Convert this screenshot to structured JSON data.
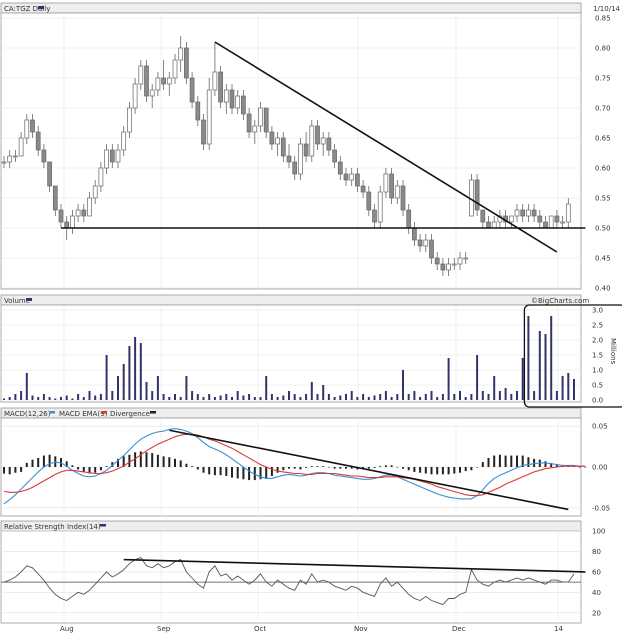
{
  "chart_data": [
    {
      "type": "candlestick",
      "title": "CA:TGZ Daily",
      "date_label": "1/10/14",
      "y_ticks": [
        "0.85",
        "0.80",
        "0.75",
        "0.70",
        "0.65",
        "0.60",
        "0.55",
        "0.50",
        "0.45",
        "0.40"
      ],
      "ylim": [
        0.4,
        0.85
      ],
      "x_ticks": [
        "Aug",
        "Sep",
        "Oct",
        "Nov",
        "Dec",
        "14"
      ],
      "ohlc": [
        [
          0.61,
          0.62,
          0.6,
          0.61
        ],
        [
          0.61,
          0.63,
          0.6,
          0.62
        ],
        [
          0.62,
          0.63,
          0.61,
          0.62
        ],
        [
          0.62,
          0.66,
          0.62,
          0.65
        ],
        [
          0.65,
          0.69,
          0.64,
          0.68
        ],
        [
          0.68,
          0.69,
          0.65,
          0.66
        ],
        [
          0.66,
          0.67,
          0.62,
          0.63
        ],
        [
          0.63,
          0.64,
          0.6,
          0.61
        ],
        [
          0.61,
          0.61,
          0.56,
          0.57
        ],
        [
          0.57,
          0.57,
          0.52,
          0.53
        ],
        [
          0.53,
          0.54,
          0.5,
          0.51
        ],
        [
          0.51,
          0.52,
          0.48,
          0.5
        ],
        [
          0.5,
          0.53,
          0.49,
          0.52
        ],
        [
          0.52,
          0.54,
          0.51,
          0.53
        ],
        [
          0.53,
          0.54,
          0.51,
          0.52
        ],
        [
          0.52,
          0.56,
          0.52,
          0.55
        ],
        [
          0.55,
          0.58,
          0.54,
          0.57
        ],
        [
          0.57,
          0.61,
          0.56,
          0.6
        ],
        [
          0.6,
          0.64,
          0.59,
          0.63
        ],
        [
          0.63,
          0.64,
          0.6,
          0.61
        ],
        [
          0.61,
          0.64,
          0.6,
          0.63
        ],
        [
          0.63,
          0.67,
          0.62,
          0.66
        ],
        [
          0.66,
          0.71,
          0.65,
          0.7
        ],
        [
          0.7,
          0.75,
          0.69,
          0.74
        ],
        [
          0.74,
          0.78,
          0.73,
          0.77
        ],
        [
          0.77,
          0.78,
          0.71,
          0.72
        ],
        [
          0.72,
          0.74,
          0.7,
          0.73
        ],
        [
          0.73,
          0.76,
          0.72,
          0.75
        ],
        [
          0.75,
          0.78,
          0.73,
          0.74
        ],
        [
          0.74,
          0.76,
          0.72,
          0.75
        ],
        [
          0.75,
          0.79,
          0.74,
          0.78
        ],
        [
          0.78,
          0.82,
          0.76,
          0.8
        ],
        [
          0.8,
          0.81,
          0.74,
          0.75
        ],
        [
          0.75,
          0.76,
          0.7,
          0.71
        ],
        [
          0.71,
          0.72,
          0.67,
          0.68
        ],
        [
          0.68,
          0.69,
          0.63,
          0.64
        ],
        [
          0.64,
          0.75,
          0.63,
          0.73
        ],
        [
          0.73,
          0.81,
          0.72,
          0.76
        ],
        [
          0.76,
          0.77,
          0.7,
          0.71
        ],
        [
          0.71,
          0.74,
          0.69,
          0.73
        ],
        [
          0.73,
          0.74,
          0.69,
          0.7
        ],
        [
          0.7,
          0.73,
          0.69,
          0.72
        ],
        [
          0.72,
          0.73,
          0.68,
          0.69
        ],
        [
          0.69,
          0.7,
          0.65,
          0.66
        ],
        [
          0.66,
          0.68,
          0.64,
          0.67
        ],
        [
          0.67,
          0.71,
          0.66,
          0.7
        ],
        [
          0.7,
          0.7,
          0.65,
          0.66
        ],
        [
          0.66,
          0.67,
          0.63,
          0.64
        ],
        [
          0.64,
          0.66,
          0.62,
          0.65
        ],
        [
          0.65,
          0.66,
          0.61,
          0.62
        ],
        [
          0.62,
          0.64,
          0.6,
          0.61
        ],
        [
          0.61,
          0.62,
          0.58,
          0.59
        ],
        [
          0.59,
          0.65,
          0.58,
          0.64
        ],
        [
          0.64,
          0.66,
          0.61,
          0.62
        ],
        [
          0.62,
          0.68,
          0.61,
          0.67
        ],
        [
          0.67,
          0.68,
          0.63,
          0.64
        ],
        [
          0.64,
          0.66,
          0.62,
          0.65
        ],
        [
          0.65,
          0.66,
          0.62,
          0.63
        ],
        [
          0.63,
          0.64,
          0.6,
          0.61
        ],
        [
          0.61,
          0.62,
          0.58,
          0.59
        ],
        [
          0.59,
          0.6,
          0.57,
          0.58
        ],
        [
          0.58,
          0.6,
          0.57,
          0.59
        ],
        [
          0.59,
          0.6,
          0.56,
          0.57
        ],
        [
          0.57,
          0.58,
          0.55,
          0.56
        ],
        [
          0.56,
          0.57,
          0.52,
          0.53
        ],
        [
          0.53,
          0.54,
          0.5,
          0.51
        ],
        [
          0.51,
          0.57,
          0.5,
          0.56
        ],
        [
          0.56,
          0.6,
          0.55,
          0.59
        ],
        [
          0.59,
          0.6,
          0.54,
          0.55
        ],
        [
          0.55,
          0.58,
          0.54,
          0.57
        ],
        [
          0.57,
          0.58,
          0.52,
          0.53
        ],
        [
          0.53,
          0.54,
          0.49,
          0.5
        ],
        [
          0.5,
          0.51,
          0.47,
          0.48
        ],
        [
          0.48,
          0.49,
          0.46,
          0.47
        ],
        [
          0.47,
          0.49,
          0.46,
          0.48
        ],
        [
          0.48,
          0.49,
          0.44,
          0.45
        ],
        [
          0.45,
          0.46,
          0.43,
          0.44
        ],
        [
          0.44,
          0.45,
          0.42,
          0.43
        ],
        [
          0.43,
          0.45,
          0.42,
          0.44
        ],
        [
          0.44,
          0.45,
          0.43,
          0.44
        ],
        [
          0.44,
          0.46,
          0.43,
          0.45
        ],
        [
          0.45,
          0.46,
          0.44,
          0.45
        ],
        [
          0.52,
          0.59,
          0.52,
          0.58
        ],
        [
          0.58,
          0.59,
          0.52,
          0.53
        ],
        [
          0.53,
          0.53,
          0.5,
          0.51
        ],
        [
          0.51,
          0.52,
          0.5,
          0.5
        ],
        [
          0.5,
          0.52,
          0.5,
          0.51
        ],
        [
          0.51,
          0.53,
          0.5,
          0.52
        ],
        [
          0.52,
          0.53,
          0.5,
          0.51
        ],
        [
          0.51,
          0.52,
          0.5,
          0.52
        ],
        [
          0.52,
          0.54,
          0.51,
          0.53
        ],
        [
          0.53,
          0.54,
          0.51,
          0.52
        ],
        [
          0.52,
          0.54,
          0.51,
          0.53
        ],
        [
          0.53,
          0.54,
          0.51,
          0.52
        ],
        [
          0.52,
          0.53,
          0.5,
          0.51
        ],
        [
          0.51,
          0.52,
          0.5,
          0.5
        ],
        [
          0.5,
          0.52,
          0.5,
          0.52
        ],
        [
          0.52,
          0.53,
          0.5,
          0.51
        ],
        [
          0.51,
          0.52,
          0.5,
          0.51
        ],
        [
          0.51,
          0.55,
          0.5,
          0.54
        ]
      ],
      "trend_lines": [
        {
          "from": {
            "bar": 37,
            "value": 0.81
          },
          "to": {
            "bar": 97,
            "value": 0.46
          }
        },
        {
          "from": {
            "bar": 10,
            "value": 0.5
          },
          "to": {
            "bar": 102,
            "value": 0.5
          }
        }
      ]
    },
    {
      "type": "bar",
      "title": "Volume",
      "watermark": "©BigCharts.com",
      "unit_label": "Millions",
      "y_ticks": [
        "3.0",
        "2.5",
        "2.0",
        "1.5",
        "1.0",
        "0.5",
        "0.0"
      ],
      "ylim": [
        0,
        3.0
      ],
      "values": [
        0.05,
        0.1,
        0.2,
        0.3,
        0.9,
        0.15,
        0.1,
        0.2,
        0.1,
        0.05,
        0.1,
        0.15,
        0.05,
        0.2,
        0.1,
        0.3,
        0.15,
        0.2,
        1.5,
        0.3,
        0.8,
        1.2,
        1.8,
        2.1,
        1.9,
        0.6,
        0.3,
        0.8,
        0.2,
        0.1,
        0.2,
        0.1,
        0.8,
        0.3,
        0.2,
        0.1,
        0.2,
        0.1,
        0.15,
        0.2,
        0.1,
        0.3,
        0.15,
        0.2,
        0.1,
        0.1,
        0.8,
        0.2,
        0.1,
        0.15,
        0.3,
        0.2,
        0.1,
        0.2,
        0.6,
        0.2,
        0.5,
        0.2,
        0.1,
        0.15,
        0.2,
        0.3,
        0.1,
        0.2,
        0.1,
        0.15,
        0.2,
        0.3,
        0.1,
        0.2,
        1.0,
        0.2,
        0.3,
        0.1,
        0.2,
        0.3,
        0.1,
        0.2,
        1.4,
        0.2,
        0.3,
        0.1,
        0.2,
        1.5,
        0.3,
        0.2,
        0.8,
        0.3,
        0.4,
        0.2,
        0.3,
        1.4,
        2.8,
        0.3,
        2.3,
        2.2,
        2.8,
        0.3,
        0.8,
        0.9,
        0.7
      ],
      "highlight_box": {
        "from_bar": 92,
        "to_bar": 102
      }
    },
    {
      "type": "line+bar",
      "title": "MACD(12,26)",
      "legend": [
        {
          "label": "MACD EMA(9)",
          "color": "#3a8fd6"
        },
        {
          "label": "Divergence",
          "color": "#d83a3a"
        }
      ],
      "y_ticks": [
        "0.05",
        "0.00",
        "-0.05"
      ],
      "ylim": [
        -0.06,
        0.06
      ],
      "series": [
        {
          "name": "MACD(12,26)",
          "color": "#3a8fd6",
          "values": [
            -0.045,
            -0.04,
            -0.034,
            -0.027,
            -0.02,
            -0.013,
            -0.006,
            0.0,
            0.004,
            0.006,
            0.005,
            0.001,
            -0.004,
            -0.008,
            -0.011,
            -0.012,
            -0.011,
            -0.008,
            -0.004,
            0.002,
            0.008,
            0.014,
            0.021,
            0.028,
            0.034,
            0.038,
            0.041,
            0.043,
            0.044,
            0.046,
            0.047,
            0.046,
            0.044,
            0.041,
            0.036,
            0.03,
            0.025,
            0.022,
            0.019,
            0.015,
            0.01,
            0.005,
            0.0,
            -0.005,
            -0.009,
            -0.012,
            -0.014,
            -0.014,
            -0.012,
            -0.01,
            -0.009,
            -0.01,
            -0.011,
            -0.01,
            -0.008,
            -0.007,
            -0.007,
            -0.008,
            -0.01,
            -0.011,
            -0.012,
            -0.013,
            -0.014,
            -0.015,
            -0.015,
            -0.014,
            -0.012,
            -0.01,
            -0.01,
            -0.012,
            -0.015,
            -0.018,
            -0.021,
            -0.024,
            -0.027,
            -0.03,
            -0.033,
            -0.035,
            -0.037,
            -0.038,
            -0.039,
            -0.039,
            -0.039,
            -0.035,
            -0.028,
            -0.02,
            -0.014,
            -0.01,
            -0.007,
            -0.004,
            -0.001,
            0.002,
            0.003,
            0.004,
            0.005,
            0.005,
            0.004,
            0.003,
            0.002,
            0.002,
            0.002,
            0.001,
            0.001
          ]
        },
        {
          "name": "MACD EMA(9)",
          "color": "#d83a3a",
          "values": [
            -0.03,
            -0.031,
            -0.031,
            -0.03,
            -0.028,
            -0.025,
            -0.021,
            -0.017,
            -0.013,
            -0.009,
            -0.006,
            -0.004,
            -0.004,
            -0.005,
            -0.006,
            -0.007,
            -0.008,
            -0.008,
            -0.007,
            -0.005,
            -0.002,
            0.001,
            0.006,
            0.01,
            0.015,
            0.02,
            0.024,
            0.028,
            0.031,
            0.034,
            0.037,
            0.039,
            0.04,
            0.04,
            0.039,
            0.037,
            0.034,
            0.032,
            0.029,
            0.026,
            0.023,
            0.019,
            0.015,
            0.011,
            0.007,
            0.003,
            0.0,
            -0.003,
            -0.005,
            -0.006,
            -0.007,
            -0.008,
            -0.008,
            -0.009,
            -0.009,
            -0.008,
            -0.008,
            -0.008,
            -0.008,
            -0.009,
            -0.01,
            -0.011,
            -0.011,
            -0.012,
            -0.013,
            -0.013,
            -0.013,
            -0.012,
            -0.012,
            -0.012,
            -0.013,
            -0.014,
            -0.015,
            -0.017,
            -0.019,
            -0.021,
            -0.024,
            -0.026,
            -0.028,
            -0.03,
            -0.032,
            -0.034,
            -0.035,
            -0.035,
            -0.034,
            -0.031,
            -0.028,
            -0.025,
            -0.021,
            -0.018,
            -0.015,
            -0.012,
            -0.009,
            -0.006,
            -0.004,
            -0.002,
            -0.001,
            0.0,
            0.001,
            0.001,
            0.001,
            0.001,
            0.001
          ]
        }
      ],
      "divergence": [
        -0.008,
        -0.009,
        -0.007,
        -0.006,
        0.005,
        0.009,
        0.011,
        0.014,
        0.015,
        0.013,
        0.011,
        0.007,
        0.002,
        -0.003,
        -0.006,
        -0.008,
        -0.007,
        -0.004,
        0.001,
        0.006,
        0.01,
        0.013,
        0.015,
        0.018,
        0.019,
        0.018,
        0.017,
        0.015,
        0.013,
        0.012,
        0.01,
        0.008,
        0.004,
        0.001,
        -0.003,
        -0.007,
        -0.009,
        -0.01,
        -0.01,
        -0.011,
        -0.013,
        -0.014,
        -0.015,
        -0.016,
        -0.016,
        -0.015,
        -0.014,
        -0.011,
        -0.007,
        -0.004,
        -0.002,
        -0.002,
        -0.003,
        -0.001,
        0.001,
        0.001,
        0.001,
        0.0,
        -0.002,
        -0.002,
        -0.002,
        -0.002,
        -0.003,
        -0.003,
        -0.002,
        -0.001,
        0.001,
        0.002,
        0.002,
        0.0,
        -0.002,
        -0.004,
        -0.006,
        -0.007,
        -0.008,
        -0.009,
        -0.009,
        -0.009,
        -0.009,
        -0.008,
        -0.007,
        -0.005,
        -0.004,
        0.0,
        0.006,
        0.011,
        0.014,
        0.015,
        0.014,
        0.014,
        0.014,
        0.014,
        0.012,
        0.01,
        0.009,
        0.007,
        0.005,
        0.003,
        0.001,
        0.001,
        0.001,
        0.0,
        0.0
      ],
      "trend_lines": [
        {
          "from": {
            "bar": 29,
            "value": 0.045
          },
          "to": {
            "bar": 99,
            "value": -0.052
          }
        }
      ]
    },
    {
      "type": "line",
      "title": "Relative Strength Index(14)",
      "y_ticks": [
        "100",
        "80",
        "60",
        "40",
        "20"
      ],
      "ylim": [
        10,
        100
      ],
      "series": [
        {
          "name": "Relative Strength Index(14)",
          "color": "#555555",
          "values": [
            50,
            52,
            55,
            60,
            66,
            64,
            58,
            52,
            44,
            38,
            34,
            32,
            36,
            40,
            38,
            42,
            48,
            54,
            60,
            55,
            58,
            62,
            68,
            72,
            74,
            66,
            64,
            68,
            64,
            66,
            70,
            72,
            60,
            54,
            48,
            44,
            60,
            66,
            56,
            58,
            52,
            56,
            52,
            48,
            52,
            58,
            50,
            46,
            52,
            48,
            44,
            42,
            52,
            48,
            58,
            50,
            52,
            50,
            46,
            44,
            42,
            46,
            44,
            40,
            38,
            36,
            48,
            54,
            46,
            50,
            44,
            38,
            34,
            32,
            36,
            32,
            30,
            28,
            34,
            34,
            38,
            40,
            62,
            52,
            48,
            46,
            50,
            52,
            50,
            52,
            54,
            52,
            54,
            52,
            50,
            48,
            52,
            52,
            50,
            50,
            58
          ]
        }
      ],
      "trend_lines": [
        {
          "from": {
            "bar": 21,
            "value": 72
          },
          "to": {
            "bar": 102,
            "value": 60
          }
        }
      ]
    }
  ]
}
